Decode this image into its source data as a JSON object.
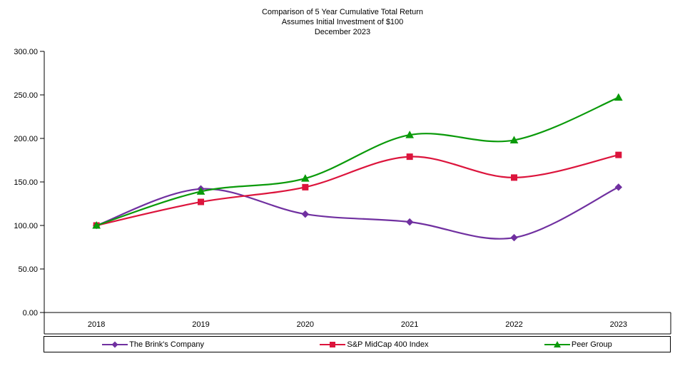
{
  "chart_data": {
    "type": "line",
    "title": "Comparison of 5 Year Cumulative Total Return",
    "subtitle": "Assumes Initial Investment of $100",
    "date": "December 2023",
    "categories": [
      "2018",
      "2019",
      "2020",
      "2021",
      "2022",
      "2023"
    ],
    "series": [
      {
        "name": "The Brink's Company",
        "color": "#7030A0",
        "marker": "diamond",
        "values": [
          100,
          142,
          113,
          104,
          86,
          144
        ]
      },
      {
        "name": "S&P MidCap 400 Index",
        "color": "#DC143C",
        "marker": "square",
        "values": [
          100,
          127,
          144,
          179,
          155,
          181
        ]
      },
      {
        "name": "Peer Group",
        "color": "#0A9A0A",
        "marker": "triangle",
        "values": [
          100,
          139,
          154,
          204,
          198,
          247
        ]
      }
    ],
    "ylim": [
      0,
      300
    ],
    "yticks": [
      {
        "value": 300,
        "label": "300.00"
      },
      {
        "value": 250,
        "label": "250.00"
      },
      {
        "value": 200,
        "label": "200.00"
      },
      {
        "value": 150,
        "label": "150.00"
      },
      {
        "value": 100,
        "label": "100.00"
      },
      {
        "value": 50,
        "label": "50.00"
      },
      {
        "value": 0,
        "label": "0.00"
      }
    ],
    "grid": false,
    "legend_position": "bottom"
  }
}
